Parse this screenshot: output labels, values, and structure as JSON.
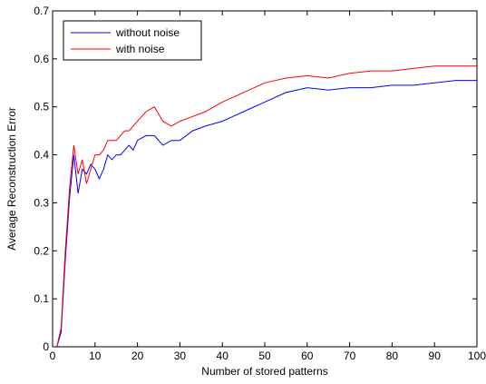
{
  "chart_data": {
    "type": "line",
    "title": "",
    "xlabel": "Number of stored patterns",
    "ylabel": "Average Reconstruction Error",
    "xlim": [
      0,
      100
    ],
    "ylim": [
      0,
      0.7
    ],
    "x_ticks": [
      0,
      10,
      20,
      30,
      40,
      50,
      60,
      70,
      80,
      90,
      100
    ],
    "y_ticks": [
      0,
      0.1,
      0.2,
      0.3,
      0.4,
      0.5,
      0.6,
      0.7
    ],
    "x_tick_labels": [
      "0",
      "10",
      "20",
      "30",
      "40",
      "50",
      "60",
      "70",
      "80",
      "90",
      "100"
    ],
    "y_tick_labels": [
      "0",
      "0.1",
      "0.2",
      "0.3",
      "0.4",
      "0.5",
      "0.6",
      "0.7"
    ],
    "grid": false,
    "legend_position": "top-left",
    "series": [
      {
        "name": "without noise",
        "color": "#0000ff",
        "x": [
          1,
          2,
          3,
          4,
          5,
          6,
          7,
          8,
          9,
          10,
          11,
          12,
          13,
          14,
          15,
          16,
          17,
          18,
          19,
          20,
          22,
          24,
          26,
          28,
          30,
          33,
          36,
          40,
          45,
          50,
          55,
          60,
          65,
          70,
          75,
          80,
          85,
          90,
          95,
          100
        ],
        "y": [
          0.0,
          0.03,
          0.18,
          0.31,
          0.4,
          0.32,
          0.37,
          0.36,
          0.38,
          0.37,
          0.35,
          0.37,
          0.4,
          0.39,
          0.4,
          0.4,
          0.41,
          0.42,
          0.41,
          0.43,
          0.44,
          0.44,
          0.42,
          0.43,
          0.43,
          0.45,
          0.46,
          0.47,
          0.49,
          0.51,
          0.53,
          0.54,
          0.535,
          0.54,
          0.54,
          0.545,
          0.545,
          0.55,
          0.555,
          0.555
        ]
      },
      {
        "name": "with noise",
        "color": "#ff0000",
        "x": [
          1,
          2,
          3,
          4,
          5,
          6,
          7,
          8,
          9,
          10,
          11,
          12,
          13,
          14,
          15,
          16,
          17,
          18,
          19,
          20,
          22,
          24,
          26,
          28,
          30,
          33,
          36,
          40,
          45,
          50,
          55,
          60,
          65,
          70,
          75,
          80,
          85,
          90,
          95,
          100
        ],
        "y": [
          0.0,
          0.04,
          0.2,
          0.33,
          0.42,
          0.36,
          0.39,
          0.34,
          0.37,
          0.4,
          0.4,
          0.41,
          0.43,
          0.43,
          0.43,
          0.44,
          0.45,
          0.45,
          0.46,
          0.47,
          0.49,
          0.5,
          0.47,
          0.46,
          0.47,
          0.48,
          0.49,
          0.51,
          0.53,
          0.55,
          0.56,
          0.565,
          0.56,
          0.57,
          0.575,
          0.575,
          0.58,
          0.585,
          0.585,
          0.585
        ]
      }
    ]
  }
}
